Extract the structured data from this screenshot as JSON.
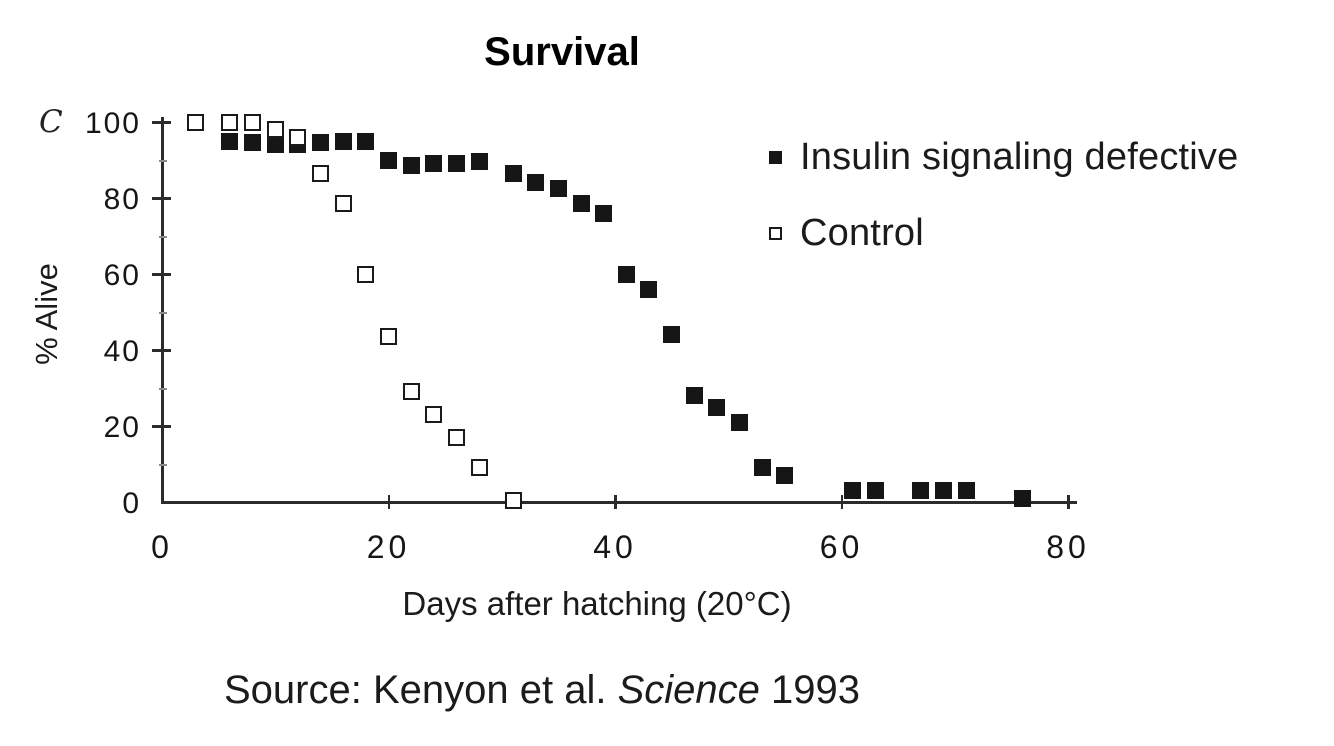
{
  "panel_label": "C",
  "source": {
    "prefix": "Source: Kenyon et al. ",
    "journal": "Science",
    "suffix": " 1993"
  },
  "colors": {
    "ink": "#1a1a1a",
    "marker": "#161616",
    "background": "#ffffff"
  },
  "chart_data": {
    "type": "scatter",
    "title": "Survival",
    "xlabel": "Days after hatching (20°C)",
    "ylabel": "% Alive",
    "xlim": [
      0,
      80
    ],
    "ylim": [
      0,
      100
    ],
    "x_ticks": [
      0,
      20,
      40,
      60,
      80
    ],
    "y_ticks": [
      0,
      20,
      40,
      60,
      80,
      100
    ],
    "y_minor_ticks": [
      10,
      30,
      50,
      70,
      90
    ],
    "grid": false,
    "legend_position": "upper right",
    "series": [
      {
        "name": "Insulin signaling defective",
        "marker": "filled-square",
        "color": "#161616",
        "points": [
          [
            6,
            95
          ],
          [
            8,
            94.5
          ],
          [
            10,
            94
          ],
          [
            12,
            94
          ],
          [
            14,
            94.5
          ],
          [
            16,
            95
          ],
          [
            18,
            95
          ],
          [
            20,
            90
          ],
          [
            22,
            88.5
          ],
          [
            24,
            89
          ],
          [
            26,
            89
          ],
          [
            28,
            89.5
          ],
          [
            31,
            86.5
          ],
          [
            33,
            84
          ],
          [
            35,
            82.5
          ],
          [
            37,
            78.5
          ],
          [
            39,
            76
          ],
          [
            41,
            60
          ],
          [
            43,
            56
          ],
          [
            45,
            44
          ],
          [
            47,
            28
          ],
          [
            49,
            25
          ],
          [
            51,
            21
          ],
          [
            53,
            9
          ],
          [
            55,
            7
          ],
          [
            61,
            3
          ],
          [
            63,
            3
          ],
          [
            67,
            3
          ],
          [
            69,
            3
          ],
          [
            71,
            3
          ],
          [
            76,
            1
          ]
        ]
      },
      {
        "name": "Control",
        "marker": "open-square",
        "color": "#161616",
        "points": [
          [
            3,
            100
          ],
          [
            6,
            100
          ],
          [
            8,
            100
          ],
          [
            10,
            98
          ],
          [
            12,
            96
          ],
          [
            14,
            86.5
          ],
          [
            16,
            78.5
          ],
          [
            18,
            60
          ],
          [
            20,
            43.5
          ],
          [
            22,
            29
          ],
          [
            24,
            23
          ],
          [
            26,
            17
          ],
          [
            28,
            9
          ],
          [
            31,
            0.5
          ]
        ]
      }
    ]
  }
}
